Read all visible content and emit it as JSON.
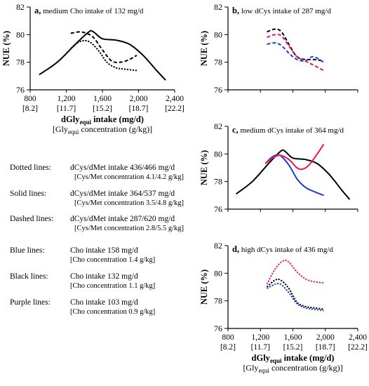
{
  "chart_data": [
    {
      "id": "a",
      "type": "line",
      "panel_letter": "a,",
      "title": "medium Cho intake of 132 mg/d",
      "ylabel": "NUE (%)",
      "ylim": [
        76,
        82
      ],
      "yticks": [
        76,
        78,
        80,
        82
      ],
      "xlim": [
        800,
        2400
      ],
      "xticks": [
        "800",
        "1,200",
        "1,600",
        "2,000",
        "2,400"
      ],
      "xticks2": [
        "[8.2]",
        "[11.7]",
        "[15.2]",
        "[18.7]",
        "[22.2]"
      ],
      "xlabel_main": "dGly",
      "xlabel_sub": "equi",
      "xlabel_rest": " intake (mg/d)",
      "xlabel2_pre": "[Gly",
      "xlabel2_sub": "equi",
      "xlabel2_rest": " concentration (g/kg)]",
      "series": [
        {
          "line": "solid",
          "color": "#000000",
          "x": [
            900,
            1100,
            1300,
            1450,
            1500,
            1600,
            1750,
            1900,
            2050,
            2200,
            2300
          ],
          "y": [
            77.1,
            78.0,
            79.3,
            80.2,
            80.2,
            79.7,
            79.6,
            79.3,
            78.5,
            77.4,
            76.7
          ]
        },
        {
          "line": "dashed",
          "color": "#000000",
          "x": [
            1250,
            1350,
            1420,
            1500,
            1600,
            1700,
            1800,
            1900,
            1980
          ],
          "y": [
            80.1,
            80.2,
            80.1,
            79.8,
            78.9,
            78.1,
            78.0,
            78.2,
            78.5
          ]
        },
        {
          "line": "dotted",
          "color": "#000000",
          "x": [
            1250,
            1350,
            1450,
            1550,
            1650,
            1750,
            1850,
            1980
          ],
          "y": [
            79.0,
            79.5,
            79.5,
            78.9,
            78.0,
            77.6,
            77.5,
            77.4
          ]
        }
      ]
    },
    {
      "id": "b",
      "type": "line",
      "panel_letter": "b,",
      "title": "low dCys intake of 287 mg/d",
      "ylabel": "NUE (%)",
      "ylim": [
        76,
        82
      ],
      "yticks": [
        76,
        78,
        80,
        82
      ],
      "xlim": [
        800,
        2400
      ],
      "series": [
        {
          "line": "dashed",
          "color": "#000000",
          "x": [
            1280,
            1380,
            1460,
            1560,
            1650,
            1750,
            1850,
            1980
          ],
          "y": [
            80.2,
            80.4,
            80.2,
            79.2,
            78.4,
            78.2,
            78.2,
            78.1
          ]
        },
        {
          "line": "dashed",
          "color": "#e8175d",
          "x": [
            1280,
            1380,
            1460,
            1560,
            1650,
            1750,
            1850,
            1980
          ],
          "y": [
            79.8,
            80.0,
            79.9,
            79.1,
            78.4,
            78.1,
            77.8,
            77.4
          ]
        },
        {
          "line": "dashed",
          "color": "#1f3ccf",
          "x": [
            1280,
            1380,
            1460,
            1560,
            1650,
            1750,
            1850,
            1980
          ],
          "y": [
            79.3,
            79.4,
            79.2,
            78.6,
            78.2,
            78.1,
            78.4,
            78.0
          ]
        }
      ]
    },
    {
      "id": "c",
      "type": "line",
      "panel_letter": "c,",
      "title": "medium dCys intake of 364 mg/d",
      "ylabel": "NUE (%)",
      "ylim": [
        76,
        82
      ],
      "yticks": [
        76,
        78,
        80,
        82
      ],
      "xlim": [
        800,
        2400
      ],
      "series": [
        {
          "line": "solid",
          "color": "#000000",
          "x": [
            900,
            1100,
            1300,
            1450,
            1500,
            1600,
            1750,
            1900,
            2050,
            2200,
            2300
          ],
          "y": [
            77.1,
            78.0,
            79.3,
            80.2,
            80.2,
            79.7,
            79.6,
            79.3,
            78.5,
            77.4,
            76.7
          ]
        },
        {
          "line": "solid",
          "color": "#1f3ccf",
          "x": [
            1260,
            1350,
            1440,
            1550,
            1650,
            1750,
            1850,
            1980
          ],
          "y": [
            79.3,
            79.8,
            79.9,
            79.2,
            78.2,
            77.6,
            77.3,
            77.0
          ]
        },
        {
          "line": "solid",
          "color": "#e8175d",
          "x": [
            1260,
            1350,
            1440,
            1550,
            1650,
            1720,
            1800,
            1900,
            1980
          ],
          "y": [
            79.3,
            79.7,
            79.9,
            79.6,
            79.0,
            78.9,
            79.2,
            80.0,
            80.7
          ]
        }
      ]
    },
    {
      "id": "d",
      "type": "line",
      "panel_letter": "d,",
      "title": "high dCys intake of 436 mg/d",
      "ylabel": "NUE (%)",
      "ylim": [
        76,
        82
      ],
      "yticks": [
        76,
        78,
        80,
        82
      ],
      "xlim": [
        800,
        2400
      ],
      "xticks": [
        "800",
        "1,200",
        "1,600",
        "2,000",
        "2,400"
      ],
      "xticks2": [
        "[8.2]",
        "[11.7]",
        "[15.2]",
        "[18.7]",
        "[22.2]"
      ],
      "xlabel_main": "dGly",
      "xlabel_sub": "equi",
      "xlabel_rest": " intake (mg/d)",
      "xlabel2_pre": "[Gly",
      "xlabel2_sub": "equi",
      "xlabel2_rest": " concentration (g/kg)]",
      "series": [
        {
          "line": "dotted",
          "color": "#e8175d",
          "x": [
            1280,
            1380,
            1480,
            1550,
            1650,
            1750,
            1850,
            1980
          ],
          "y": [
            79.2,
            80.3,
            80.9,
            80.8,
            80.1,
            79.6,
            79.4,
            79.3
          ]
        },
        {
          "line": "dotted",
          "color": "#000000",
          "x": [
            1280,
            1380,
            1450,
            1550,
            1650,
            1750,
            1850,
            1980
          ],
          "y": [
            79.0,
            79.5,
            79.5,
            78.9,
            77.9,
            77.6,
            77.5,
            77.4
          ]
        },
        {
          "line": "dotted",
          "color": "#1f3ccf",
          "x": [
            1280,
            1380,
            1450,
            1550,
            1650,
            1750,
            1850,
            1980
          ],
          "y": [
            78.9,
            79.2,
            79.2,
            78.6,
            77.8,
            77.5,
            77.4,
            77.3
          ]
        }
      ]
    }
  ],
  "legend": [
    {
      "key": "Dotted lines:",
      "text": "dCys/dMet intake 436/466 mg/d",
      "sub": "[Cys/Met concentration 4.1/4.2 g/kg]"
    },
    {
      "key": "Solid lines:",
      "text": "dCys/dMet intake 364/537 mg/d",
      "sub": "[Cys/Met concentration 3.5/4.8 g/kg]"
    },
    {
      "key": "Dashed lines:",
      "text": "dCys/dMet intake 287/620 mg/d",
      "sub": "[Cys/Met concentration 2.8/5.5 g/kg]"
    },
    {
      "key": "Blue lines:",
      "text": "Cho intake 158 mg/d",
      "sub": "[Cho concentration 1.4 g/kg]"
    },
    {
      "key": "Black lines:",
      "text": "Cho intake 132 mg/d",
      "sub": "[Cho concentration 1.1 g/kg]"
    },
    {
      "key": "Purple lines:",
      "text": "Cho intake 103 mg/d",
      "sub": "[Cho concentration 0.9 g/kg]"
    }
  ]
}
